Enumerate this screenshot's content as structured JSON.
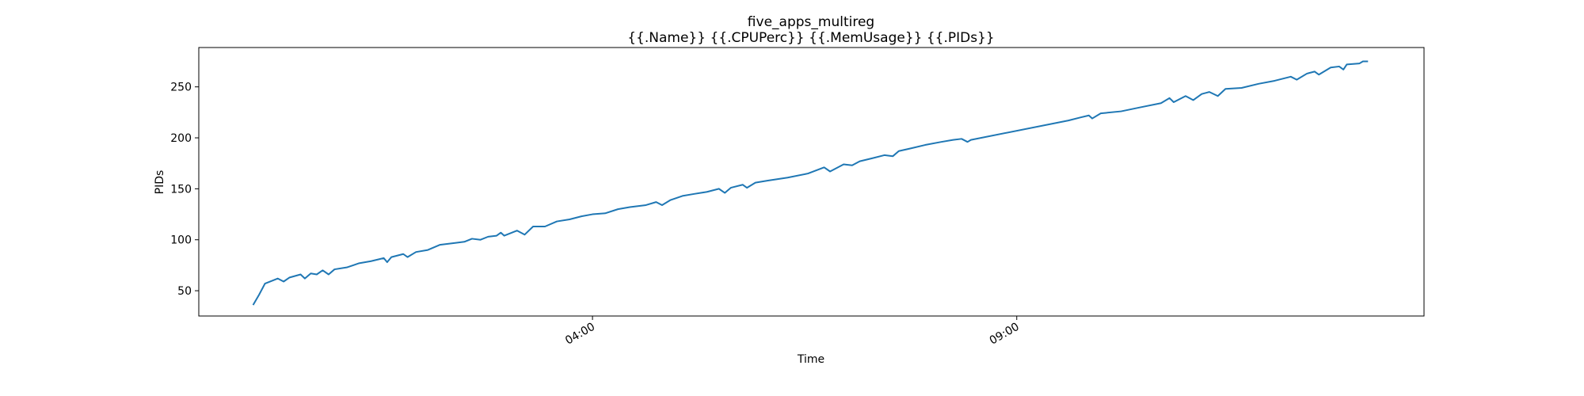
{
  "chart_data": {
    "type": "line",
    "title": "five_apps_multireg",
    "subtitle": "{{.Name}} {{.CPUPerc}} {{.MemUsage}}  {{.PIDs}}",
    "x_label": "Time",
    "y_label": "PIDs",
    "x": [
      0,
      0.07,
      0.14,
      0.29,
      0.36,
      0.43,
      0.56,
      0.61,
      0.68,
      0.75,
      0.82,
      0.89,
      0.96,
      1.11,
      1.18,
      1.25,
      1.39,
      1.54,
      1.58,
      1.63,
      1.77,
      1.82,
      1.92,
      2.06,
      2.2,
      2.39,
      2.49,
      2.58,
      2.68,
      2.77,
      2.87,
      2.92,
      2.96,
      3.11,
      3.2,
      3.3,
      3.44,
      3.58,
      3.73,
      3.87,
      4.0,
      4.15,
      4.3,
      4.44,
      4.63,
      4.75,
      4.82,
      4.92,
      5.06,
      5.2,
      5.35,
      5.49,
      5.56,
      5.63,
      5.77,
      5.82,
      5.92,
      6.06,
      6.3,
      6.54,
      6.73,
      6.8,
      6.96,
      7.06,
      7.15,
      7.3,
      7.44,
      7.54,
      7.61,
      7.77,
      7.92,
      8.11,
      8.25,
      8.35,
      8.42,
      8.46,
      9.61,
      9.75,
      9.85,
      9.89,
      9.99,
      10.23,
      10.46,
      10.7,
      10.8,
      10.85,
      10.99,
      11.08,
      11.18,
      11.27,
      11.37,
      11.46,
      11.65,
      11.85,
      12.04,
      12.23,
      12.3,
      12.42,
      12.51,
      12.56,
      12.7,
      12.8,
      12.85,
      12.89,
      13.04,
      13.08,
      13.14
    ],
    "series": [
      {
        "color": "#1f77b4",
        "values": [
          36,
          46,
          57,
          62,
          59,
          63,
          66,
          62,
          67,
          66,
          70,
          66,
          71,
          73,
          75,
          77,
          79,
          82,
          78,
          83,
          86,
          83,
          88,
          90,
          95,
          97,
          98,
          101,
          100,
          103,
          104,
          107,
          104,
          109,
          105,
          113,
          113,
          118,
          120,
          123,
          125,
          126,
          130,
          132,
          134,
          137,
          134,
          139,
          143,
          145,
          147,
          150,
          146,
          151,
          154,
          151,
          156,
          158,
          161,
          165,
          171,
          167,
          174,
          173,
          177,
          180,
          183,
          182,
          187,
          190,
          193,
          196,
          198,
          199,
          196,
          198,
          217,
          220,
          222,
          219,
          224,
          226,
          230,
          234,
          239,
          235,
          241,
          237,
          243,
          245,
          241,
          248,
          249,
          253,
          256,
          260,
          257,
          263,
          265,
          262,
          269,
          270,
          267,
          272,
          273,
          275,
          275
        ]
      }
    ],
    "xlim": [
      -0.64,
      13.8
    ],
    "xticks": [
      {
        "value": 4,
        "label": "04:00"
      },
      {
        "value": 9,
        "label": "09:00"
      }
    ],
    "ylim": [
      25.2,
      288.6
    ],
    "yticks": [
      50,
      100,
      150,
      200,
      250
    ]
  }
}
